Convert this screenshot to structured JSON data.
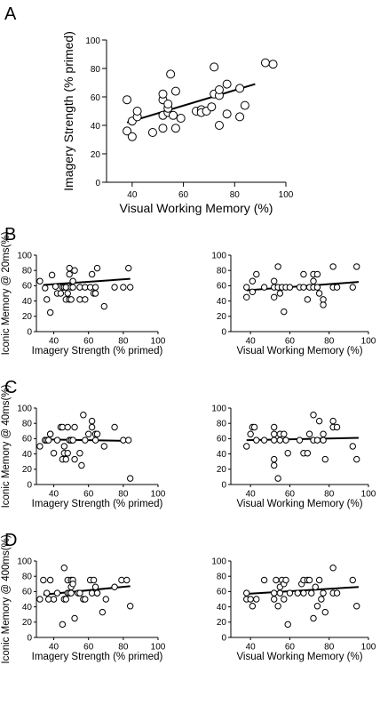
{
  "panels": [
    {
      "letter": "A"
    },
    {
      "letter": "B"
    },
    {
      "letter": "C"
    },
    {
      "letter": "D"
    }
  ],
  "chart_data": [
    {
      "id": "A",
      "type": "scatter",
      "xlabel": "Visual Working Memory (%)",
      "ylabel": "Imagery Strength (% primed)",
      "xlim": [
        30,
        100
      ],
      "ylim": [
        0,
        100
      ],
      "xticks": [
        40,
        60,
        80,
        100
      ],
      "yticks": [
        0,
        20,
        40,
        60,
        80,
        100
      ],
      "fit": [
        [
          38,
          42
        ],
        [
          88,
          69
        ]
      ],
      "points": [
        [
          38,
          58
        ],
        [
          38,
          36
        ],
        [
          40,
          32
        ],
        [
          40,
          43
        ],
        [
          42,
          46
        ],
        [
          42,
          50
        ],
        [
          48,
          35
        ],
        [
          52,
          38
        ],
        [
          52,
          47
        ],
        [
          52,
          58
        ],
        [
          52,
          62
        ],
        [
          54,
          49
        ],
        [
          54,
          52
        ],
        [
          54,
          55
        ],
        [
          55,
          76
        ],
        [
          56,
          47
        ],
        [
          57,
          38
        ],
        [
          57,
          64
        ],
        [
          59,
          45
        ],
        [
          65,
          50
        ],
        [
          67,
          51
        ],
        [
          67,
          49
        ],
        [
          69,
          50
        ],
        [
          71,
          53
        ],
        [
          72,
          62
        ],
        [
          72,
          81
        ],
        [
          74,
          40
        ],
        [
          74,
          61
        ],
        [
          74,
          65
        ],
        [
          77,
          48
        ],
        [
          77,
          69
        ],
        [
          82,
          46
        ],
        [
          82,
          66
        ],
        [
          84,
          54
        ],
        [
          92,
          84
        ],
        [
          95,
          83
        ]
      ]
    },
    {
      "id": "B-left",
      "type": "scatter",
      "xlabel": "Imagery Strength (% primed)",
      "ylabel": "Iconic Memory @ 20ms(%)",
      "xlim": [
        30,
        100
      ],
      "ylim": [
        0,
        100
      ],
      "xticks": [
        40,
        60,
        80,
        100
      ],
      "yticks": [
        0,
        20,
        40,
        60,
        80,
        100
      ],
      "fit": [
        [
          34,
          61
        ],
        [
          84,
          69
        ]
      ],
      "points": [
        [
          32,
          66
        ],
        [
          35,
          57
        ],
        [
          36,
          42
        ],
        [
          38,
          25
        ],
        [
          39,
          74
        ],
        [
          41,
          59
        ],
        [
          42,
          50
        ],
        [
          44,
          50
        ],
        [
          45,
          58
        ],
        [
          46,
          58
        ],
        [
          47,
          42
        ],
        [
          47,
          58
        ],
        [
          48,
          50
        ],
        [
          49,
          42
        ],
        [
          49,
          75
        ],
        [
          49,
          83
        ],
        [
          50,
          58
        ],
        [
          50,
          42
        ],
        [
          51,
          66
        ],
        [
          51,
          58
        ],
        [
          52,
          80
        ],
        [
          55,
          58
        ],
        [
          55,
          42
        ],
        [
          58,
          42
        ],
        [
          58,
          58
        ],
        [
          61,
          58
        ],
        [
          62,
          75
        ],
        [
          63,
          50
        ],
        [
          64,
          58
        ],
        [
          64,
          50
        ],
        [
          65,
          83
        ],
        [
          69,
          33
        ],
        [
          75,
          58
        ],
        [
          80,
          58
        ],
        [
          83,
          83
        ],
        [
          84,
          58
        ]
      ]
    },
    {
      "id": "B-right",
      "type": "scatter",
      "xlabel": "Visual Working Memory (%)",
      "ylabel": "",
      "xlim": [
        30,
        100
      ],
      "ylim": [
        0,
        100
      ],
      "xticks": [
        40,
        60,
        80,
        100
      ],
      "yticks": [
        0,
        20,
        40,
        60,
        80,
        100
      ],
      "fit": [
        [
          38,
          54
        ],
        [
          95,
          65
        ]
      ],
      "points": [
        [
          38,
          45
        ],
        [
          38,
          58
        ],
        [
          41,
          52
        ],
        [
          41,
          66
        ],
        [
          43,
          75
        ],
        [
          47,
          58
        ],
        [
          52,
          45
        ],
        [
          52,
          58
        ],
        [
          52,
          66
        ],
        [
          54,
          58
        ],
        [
          54,
          85
        ],
        [
          55,
          50
        ],
        [
          56,
          58
        ],
        [
          57,
          26
        ],
        [
          58,
          58
        ],
        [
          60,
          58
        ],
        [
          65,
          58
        ],
        [
          67,
          58
        ],
        [
          67,
          75
        ],
        [
          69,
          42
        ],
        [
          70,
          58
        ],
        [
          72,
          58
        ],
        [
          72,
          66
        ],
        [
          72,
          75
        ],
        [
          74,
          58
        ],
        [
          74,
          75
        ],
        [
          75,
          50
        ],
        [
          77,
          42
        ],
        [
          77,
          35
        ],
        [
          82,
          58
        ],
        [
          82,
          85
        ],
        [
          84,
          58
        ],
        [
          92,
          58
        ],
        [
          94,
          85
        ]
      ]
    },
    {
      "id": "C-left",
      "type": "scatter",
      "xlabel": "Imagery Strength (% primed)",
      "ylabel": "Iconic Memory @ 40ms(%)",
      "xlim": [
        30,
        100
      ],
      "ylim": [
        0,
        100
      ],
      "xticks": [
        40,
        60,
        80,
        100
      ],
      "yticks": [
        0,
        20,
        40,
        60,
        80,
        100
      ],
      "fit": [
        [
          34,
          59
        ],
        [
          84,
          57
        ]
      ],
      "points": [
        [
          32,
          50
        ],
        [
          35,
          58
        ],
        [
          35,
          58
        ],
        [
          36,
          58
        ],
        [
          37,
          58
        ],
        [
          38,
          66
        ],
        [
          38,
          66
        ],
        [
          40,
          41
        ],
        [
          42,
          58
        ],
        [
          44,
          75
        ],
        [
          45,
          33
        ],
        [
          45,
          75
        ],
        [
          46,
          41
        ],
        [
          46,
          50
        ],
        [
          47,
          33
        ],
        [
          48,
          41
        ],
        [
          48,
          75
        ],
        [
          49,
          58
        ],
        [
          50,
          58
        ],
        [
          50,
          58
        ],
        [
          51,
          58
        ],
        [
          52,
          75
        ],
        [
          52,
          33
        ],
        [
          55,
          41
        ],
        [
          56,
          25
        ],
        [
          57,
          91
        ],
        [
          58,
          58
        ],
        [
          60,
          66
        ],
        [
          62,
          75
        ],
        [
          62,
          83
        ],
        [
          64,
          66
        ],
        [
          64,
          58
        ],
        [
          65,
          66
        ],
        [
          69,
          50
        ],
        [
          75,
          75
        ],
        [
          80,
          58
        ],
        [
          83,
          58
        ],
        [
          84,
          8
        ]
      ]
    },
    {
      "id": "C-right",
      "type": "scatter",
      "xlabel": "Visual Working Memory (%)",
      "ylabel": "",
      "xlim": [
        30,
        100
      ],
      "ylim": [
        0,
        100
      ],
      "xticks": [
        40,
        60,
        80,
        100
      ],
      "yticks": [
        0,
        20,
        40,
        60,
        80,
        100
      ],
      "fit": [
        [
          38,
          58
        ],
        [
          95,
          61
        ]
      ],
      "points": [
        [
          38,
          50
        ],
        [
          40,
          66
        ],
        [
          41,
          75
        ],
        [
          42,
          75
        ],
        [
          43,
          58
        ],
        [
          47,
          58
        ],
        [
          52,
          75
        ],
        [
          52,
          58
        ],
        [
          52,
          66
        ],
        [
          52,
          33
        ],
        [
          52,
          25
        ],
        [
          54,
          8
        ],
        [
          55,
          66
        ],
        [
          55,
          58
        ],
        [
          57,
          66
        ],
        [
          58,
          58
        ],
        [
          59,
          41
        ],
        [
          65,
          58
        ],
        [
          67,
          41
        ],
        [
          69,
          41
        ],
        [
          70,
          66
        ],
        [
          72,
          58
        ],
        [
          72,
          91
        ],
        [
          74,
          58
        ],
        [
          75,
          83
        ],
        [
          77,
          58
        ],
        [
          77,
          66
        ],
        [
          78,
          33
        ],
        [
          82,
          75
        ],
        [
          84,
          75
        ],
        [
          82,
          83
        ],
        [
          92,
          50
        ],
        [
          94,
          33
        ]
      ]
    },
    {
      "id": "D-left",
      "type": "scatter",
      "xlabel": "Imagery Strength (% primed)",
      "ylabel": "Iconic Memory @ 400ms(%)",
      "xlim": [
        30,
        100
      ],
      "ylim": [
        0,
        100
      ],
      "xticks": [
        40,
        60,
        80,
        100
      ],
      "yticks": [
        0,
        20,
        40,
        60,
        80,
        100
      ],
      "fit": [
        [
          34,
          56
        ],
        [
          84,
          67
        ]
      ],
      "points": [
        [
          32,
          50
        ],
        [
          34,
          75
        ],
        [
          36,
          58
        ],
        [
          37,
          50
        ],
        [
          38,
          75
        ],
        [
          40,
          50
        ],
        [
          42,
          58
        ],
        [
          45,
          17
        ],
        [
          46,
          50
        ],
        [
          46,
          91
        ],
        [
          47,
          50
        ],
        [
          48,
          75
        ],
        [
          48,
          58
        ],
        [
          49,
          58
        ],
        [
          50,
          75
        ],
        [
          50,
          58
        ],
        [
          50,
          66
        ],
        [
          51,
          75
        ],
        [
          51,
          70
        ],
        [
          52,
          25
        ],
        [
          54,
          58
        ],
        [
          55,
          58
        ],
        [
          57,
          50
        ],
        [
          58,
          50
        ],
        [
          61,
          75
        ],
        [
          62,
          58
        ],
        [
          63,
          75
        ],
        [
          64,
          66
        ],
        [
          65,
          58
        ],
        [
          65,
          58
        ],
        [
          68,
          33
        ],
        [
          70,
          50
        ],
        [
          75,
          66
        ],
        [
          79,
          75
        ],
        [
          82,
          75
        ],
        [
          84,
          41
        ]
      ]
    },
    {
      "id": "D-right",
      "type": "scatter",
      "xlabel": "Visual Working Memory (%)",
      "ylabel": "",
      "xlim": [
        30,
        100
      ],
      "ylim": [
        0,
        100
      ],
      "xticks": [
        40,
        60,
        80,
        100
      ],
      "yticks": [
        0,
        20,
        40,
        60,
        80,
        100
      ],
      "fit": [
        [
          38,
          57
        ],
        [
          95,
          66
        ]
      ],
      "points": [
        [
          38,
          50
        ],
        [
          38,
          58
        ],
        [
          40,
          50
        ],
        [
          41,
          41
        ],
        [
          43,
          50
        ],
        [
          47,
          75
        ],
        [
          52,
          50
        ],
        [
          52,
          58
        ],
        [
          53,
          75
        ],
        [
          54,
          41
        ],
        [
          55,
          66
        ],
        [
          55,
          58
        ],
        [
          56,
          75
        ],
        [
          57,
          70
        ],
        [
          57,
          50
        ],
        [
          58,
          75
        ],
        [
          59,
          17
        ],
        [
          60,
          58
        ],
        [
          64,
          58
        ],
        [
          66,
          70
        ],
        [
          67,
          75
        ],
        [
          67,
          58
        ],
        [
          69,
          75
        ],
        [
          70,
          75
        ],
        [
          71,
          58
        ],
        [
          72,
          25
        ],
        [
          73,
          66
        ],
        [
          74,
          41
        ],
        [
          75,
          75
        ],
        [
          76,
          50
        ],
        [
          77,
          58
        ],
        [
          78,
          33
        ],
        [
          82,
          91
        ],
        [
          82,
          58
        ],
        [
          84,
          58
        ],
        [
          92,
          75
        ],
        [
          94,
          41
        ]
      ]
    }
  ]
}
